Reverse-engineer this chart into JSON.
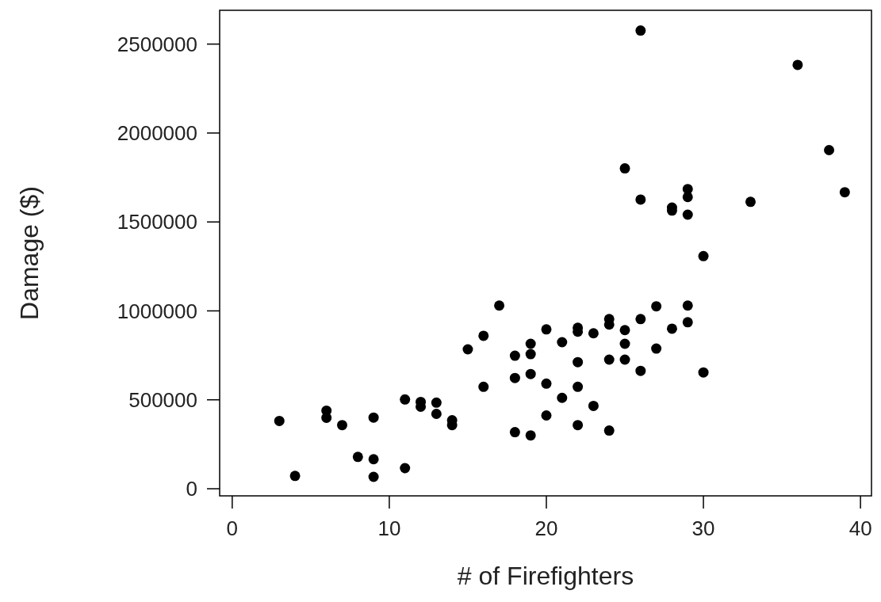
{
  "chart_data": {
    "type": "scatter",
    "xlabel": "# of Firefighters",
    "ylabel": "Damage ($)",
    "xlim": [
      -0.8,
      40.7
    ],
    "xticks": [
      0,
      10,
      20,
      30,
      40
    ],
    "ylim": [
      -40000,
      2690000
    ],
    "yticks": [
      0,
      500000,
      1000000,
      1500000,
      2000000,
      2500000
    ],
    "grid": false,
    "marker": "circle",
    "series": [
      {
        "color": "#000000",
        "x": [
          3,
          4,
          6,
          6,
          7,
          8,
          9,
          9,
          9,
          11,
          11,
          12,
          12,
          13,
          13,
          14,
          14,
          15,
          16,
          16,
          17,
          18,
          18,
          18,
          19,
          19,
          19,
          19,
          20,
          20,
          20,
          21,
          21,
          22,
          22,
          22,
          22,
          22,
          23,
          23,
          24,
          24,
          24,
          24,
          25,
          25,
          25,
          25,
          26,
          26,
          26,
          26,
          27,
          27,
          28,
          28,
          28,
          29,
          29,
          29,
          29,
          29,
          30,
          30,
          33,
          36,
          38,
          39
        ],
        "values": [
          381000,
          72000,
          439000,
          399000,
          358000,
          179000,
          400000,
          166000,
          67000,
          502000,
          116000,
          488000,
          461000,
          484000,
          421000,
          385000,
          358000,
          784000,
          860000,
          573000,
          1030000,
          748000,
          623000,
          318000,
          815000,
          757000,
          645000,
          300000,
          896000,
          591000,
          412000,
          824000,
          511000,
          905000,
          883000,
          712000,
          573000,
          358000,
          874000,
          466000,
          954000,
          923000,
          726000,
          327000,
          1801000,
          892000,
          815000,
          726000,
          2576000,
          1626000,
          954000,
          663000,
          1026000,
          788000,
          1581000,
          1564000,
          900000,
          1685000,
          1640000,
          1541000,
          1030000,
          936000,
          1308000,
          654000,
          1613000,
          2383000,
          1904000,
          1667000
        ]
      }
    ]
  }
}
